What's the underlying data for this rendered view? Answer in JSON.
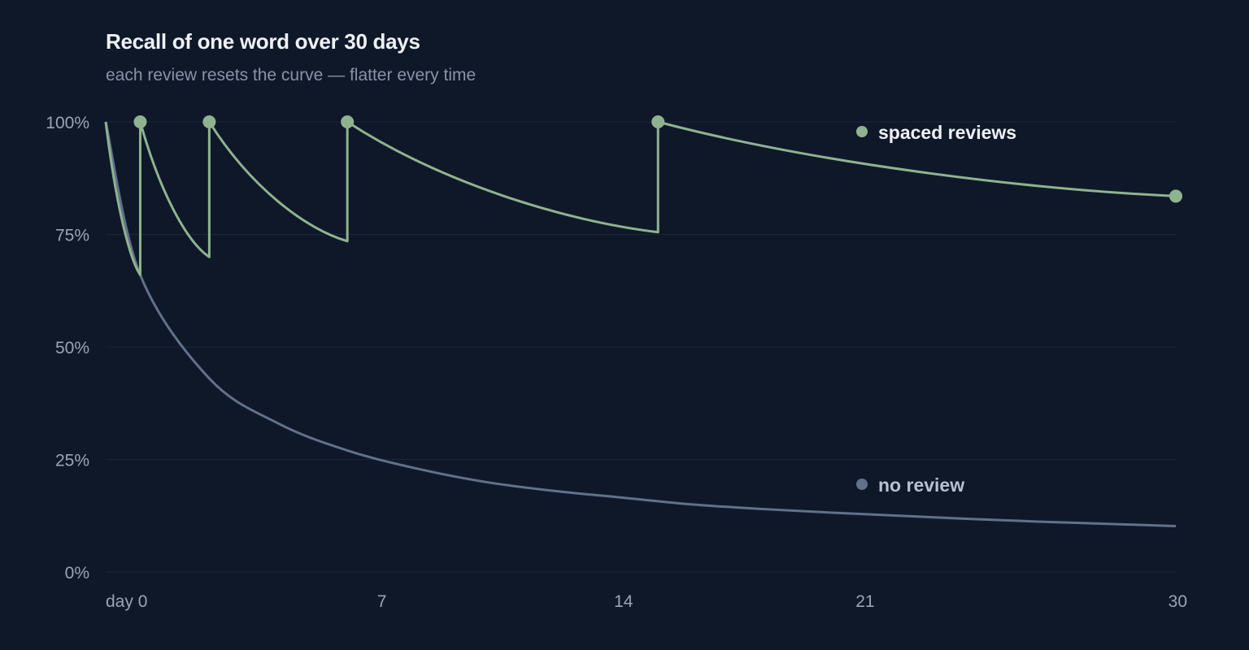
{
  "header": {
    "title": "Recall of one word over 30 days",
    "subtitle": "each review resets the curve — flatter every time"
  },
  "colors": {
    "background": "#0f1829",
    "spaced": "#8fb38f",
    "no_review": "#627089",
    "grid": "#1c2638",
    "tick_text": "#9aa4b4"
  },
  "chart_data": {
    "type": "line",
    "title": "Recall of one word over 30 days",
    "subtitle": "each review resets the curve — flatter every time",
    "xlabel": "",
    "ylabel": "",
    "xlim": [
      -1,
      30
    ],
    "ylim": [
      0,
      100
    ],
    "x_ticks": [
      {
        "value": -1,
        "label": "day 0"
      },
      {
        "value": 7,
        "label": "7"
      },
      {
        "value": 14,
        "label": "14"
      },
      {
        "value": 21,
        "label": "21"
      },
      {
        "value": 30,
        "label": "30"
      }
    ],
    "y_ticks": [
      {
        "value": 0,
        "label": "0%"
      },
      {
        "value": 25,
        "label": "25%"
      },
      {
        "value": 50,
        "label": "50%"
      },
      {
        "value": 75,
        "label": "75%"
      },
      {
        "value": 100,
        "label": "100%"
      }
    ],
    "grid": true,
    "legend": "inline",
    "series": [
      {
        "name": "spaced reviews",
        "review_days": [
          0,
          2,
          6,
          15
        ],
        "points": [
          [
            -1,
            100
          ],
          [
            0,
            66
          ],
          [
            0,
            100
          ],
          [
            2,
            70
          ],
          [
            2,
            100
          ],
          [
            6,
            73.5
          ],
          [
            6,
            100
          ],
          [
            15,
            75.5
          ],
          [
            15,
            100
          ],
          [
            30,
            83.5
          ]
        ],
        "review_values": [
          100,
          100,
          100,
          100
        ],
        "end_value": 83.5
      },
      {
        "name": "no review",
        "points": [
          [
            -1,
            100
          ],
          [
            0,
            66
          ],
          [
            2,
            43
          ],
          [
            4,
            33
          ],
          [
            6,
            27
          ],
          [
            8,
            23
          ],
          [
            10,
            20
          ],
          [
            12,
            18
          ],
          [
            14,
            16.5
          ],
          [
            16,
            15
          ],
          [
            18,
            14
          ],
          [
            20,
            13.2
          ],
          [
            22,
            12.5
          ],
          [
            24,
            11.8
          ],
          [
            26,
            11.2
          ],
          [
            28,
            10.7
          ],
          [
            30,
            10.2
          ]
        ]
      }
    ]
  }
}
